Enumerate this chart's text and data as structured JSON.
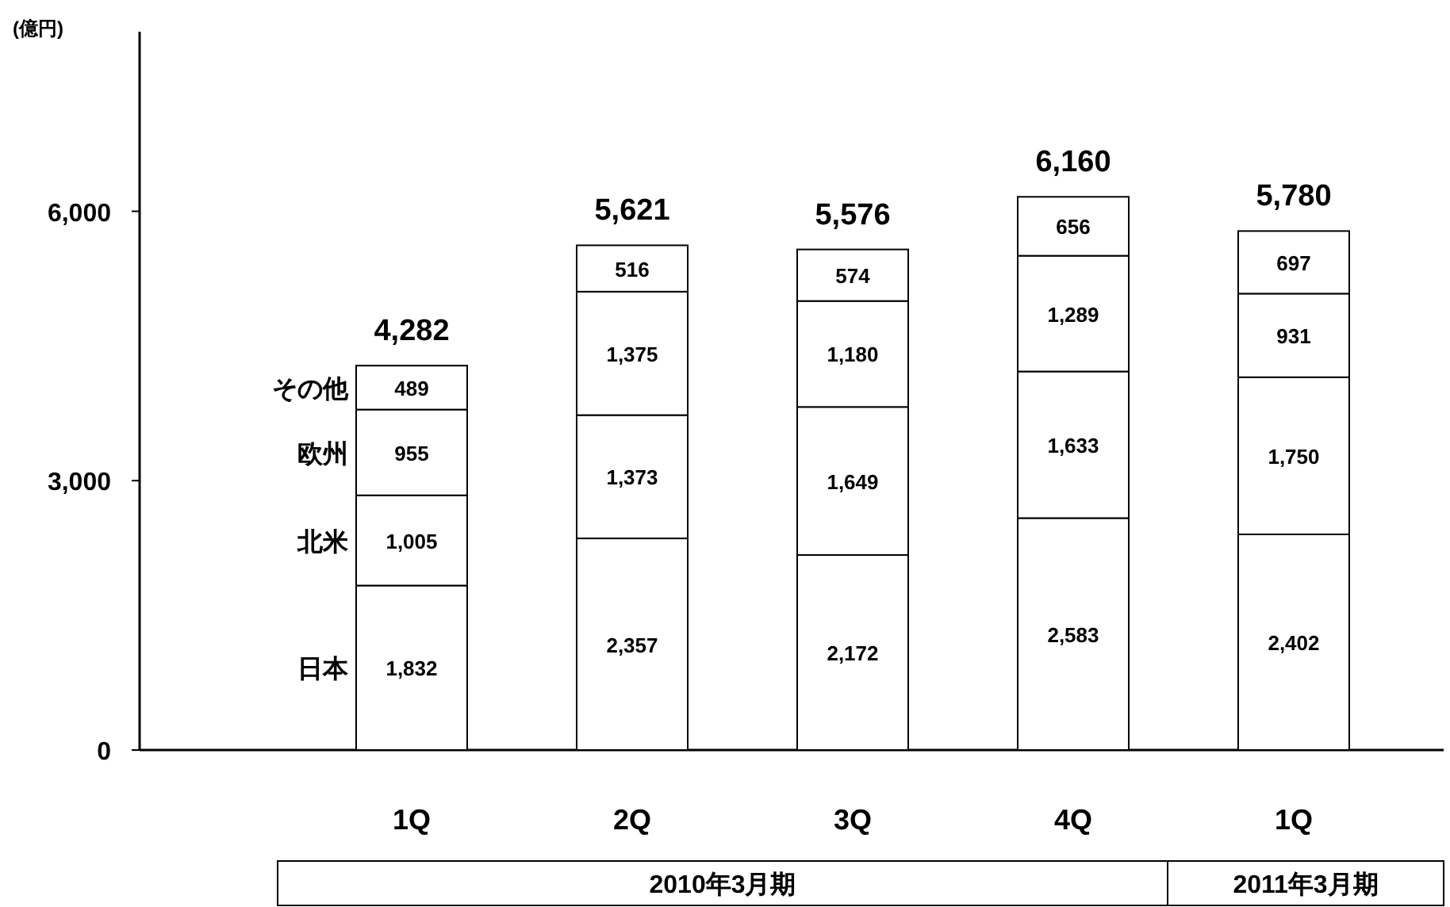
{
  "chart_data": {
    "type": "bar",
    "stacked": true,
    "ylabel": "(億円)",
    "categories": [
      "1Q",
      "2Q",
      "3Q",
      "4Q",
      "1Q"
    ],
    "annotations": [
      "2010年3月期",
      "2011年3月期"
    ],
    "ylim": [
      0,
      8000
    ],
    "yticks": [
      {
        "value": 0,
        "label": "0"
      },
      {
        "value": 3000,
        "label": "3,000"
      },
      {
        "value": 6000,
        "label": "6,000"
      }
    ],
    "grid": false,
    "series": [
      {
        "name": "日本",
        "color": "#ffffff",
        "values": [
          1832,
          2357,
          2172,
          2583,
          2402
        ],
        "value_labels": [
          "1,832",
          "2,357",
          "2,172",
          "2,583",
          "2,402"
        ]
      },
      {
        "name": "北米",
        "color": "#ffffff",
        "values": [
          1005,
          1373,
          1649,
          1633,
          1750
        ],
        "value_labels": [
          "1,005",
          "1,373",
          "1,649",
          "1,633",
          "1,750"
        ]
      },
      {
        "name": "欧州",
        "color": "#ffffff",
        "values": [
          955,
          1375,
          1180,
          1289,
          931
        ],
        "value_labels": [
          "955",
          "1,375",
          "1,180",
          "1,289",
          "931"
        ]
      },
      {
        "name": "その他",
        "color": "#ffffff",
        "values": [
          489,
          516,
          574,
          656,
          697
        ],
        "value_labels": [
          "489",
          "516",
          "574",
          "656",
          "697"
        ]
      }
    ],
    "totals": [
      "4,282",
      "5,621",
      "5,576",
      "6,160",
      "5,780"
    ]
  }
}
